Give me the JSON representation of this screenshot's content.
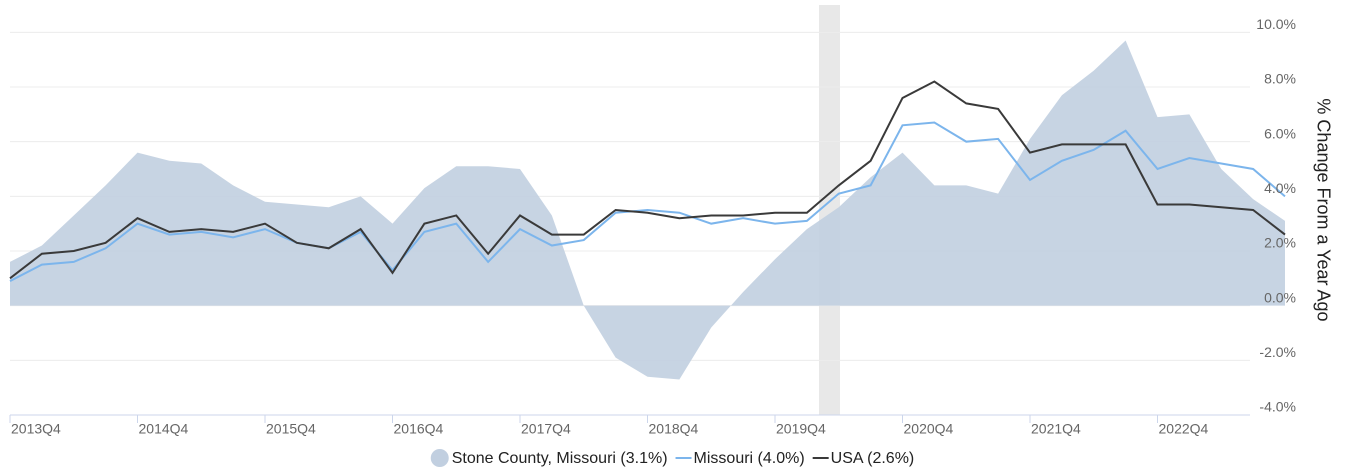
{
  "chart_data": {
    "type": "line",
    "categories": [
      "2013Q4",
      null,
      null,
      null,
      "2014Q4",
      null,
      null,
      null,
      "2015Q4",
      null,
      null,
      null,
      "2016Q4",
      null,
      null,
      null,
      "2017Q4",
      null,
      null,
      null,
      "2018Q4",
      null,
      null,
      null,
      "2019Q4",
      null,
      null,
      null,
      "2020Q4",
      null,
      null,
      null,
      "2021Q4",
      null,
      null,
      null,
      "2022Q4",
      null,
      null,
      null,
      null
    ],
    "series": [
      {
        "name": "Stone County, Missouri (3.1%)",
        "kind": "area",
        "color": "#c1cfe0",
        "values": [
          1.6,
          2.2,
          3.3,
          4.4,
          5.6,
          5.3,
          5.2,
          4.4,
          3.8,
          3.7,
          3.6,
          4.0,
          3.0,
          4.3,
          5.1,
          5.1,
          5.0,
          3.3,
          0.0,
          -1.9,
          -2.6,
          -2.7,
          -0.8,
          0.5,
          1.7,
          2.8,
          3.6,
          4.7,
          5.6,
          4.4,
          4.4,
          4.1,
          6.1,
          7.7,
          8.6,
          9.7,
          6.9,
          7.0,
          5.0,
          3.9,
          3.1
        ]
      },
      {
        "name": "Missouri (4.0%)",
        "kind": "line",
        "color": "#7cb5ec",
        "values": [
          0.9,
          1.5,
          1.6,
          2.1,
          3.0,
          2.6,
          2.7,
          2.5,
          2.8,
          2.3,
          2.1,
          2.7,
          1.3,
          2.7,
          3.0,
          1.6,
          2.8,
          2.2,
          2.4,
          3.4,
          3.5,
          3.4,
          3.0,
          3.2,
          3.0,
          3.1,
          4.1,
          4.4,
          6.6,
          6.7,
          6.0,
          6.1,
          4.6,
          5.3,
          5.7,
          6.4,
          5.0,
          5.4,
          5.2,
          5.0,
          4.0
        ]
      },
      {
        "name": "USA (2.6%)",
        "kind": "line",
        "color": "#3a3a3a",
        "values": [
          1.0,
          1.9,
          2.0,
          2.3,
          3.2,
          2.7,
          2.8,
          2.7,
          3.0,
          2.3,
          2.1,
          2.8,
          1.2,
          3.0,
          3.3,
          1.9,
          3.3,
          2.6,
          2.6,
          3.5,
          3.4,
          3.2,
          3.3,
          3.3,
          3.4,
          3.4,
          4.4,
          5.3,
          7.6,
          8.2,
          7.4,
          7.2,
          5.6,
          5.9,
          5.9,
          5.9,
          3.7,
          3.7,
          3.6,
          3.5,
          2.6
        ]
      }
    ],
    "y_label": "% Change From a Year Ago",
    "ylim": [
      -4,
      11
    ],
    "yticks": [
      {
        "value": -4,
        "label": "-4.0%"
      },
      {
        "value": -2,
        "label": "-2.0%"
      },
      {
        "value": 0,
        "label": "0.0%"
      },
      {
        "value": 2,
        "label": "2.0%"
      },
      {
        "value": 4,
        "label": "4.0%"
      },
      {
        "value": 6,
        "label": "6.0%"
      },
      {
        "value": 8,
        "label": "8.0%"
      },
      {
        "value": 10,
        "label": "10.0%"
      }
    ],
    "grid": true
  }
}
